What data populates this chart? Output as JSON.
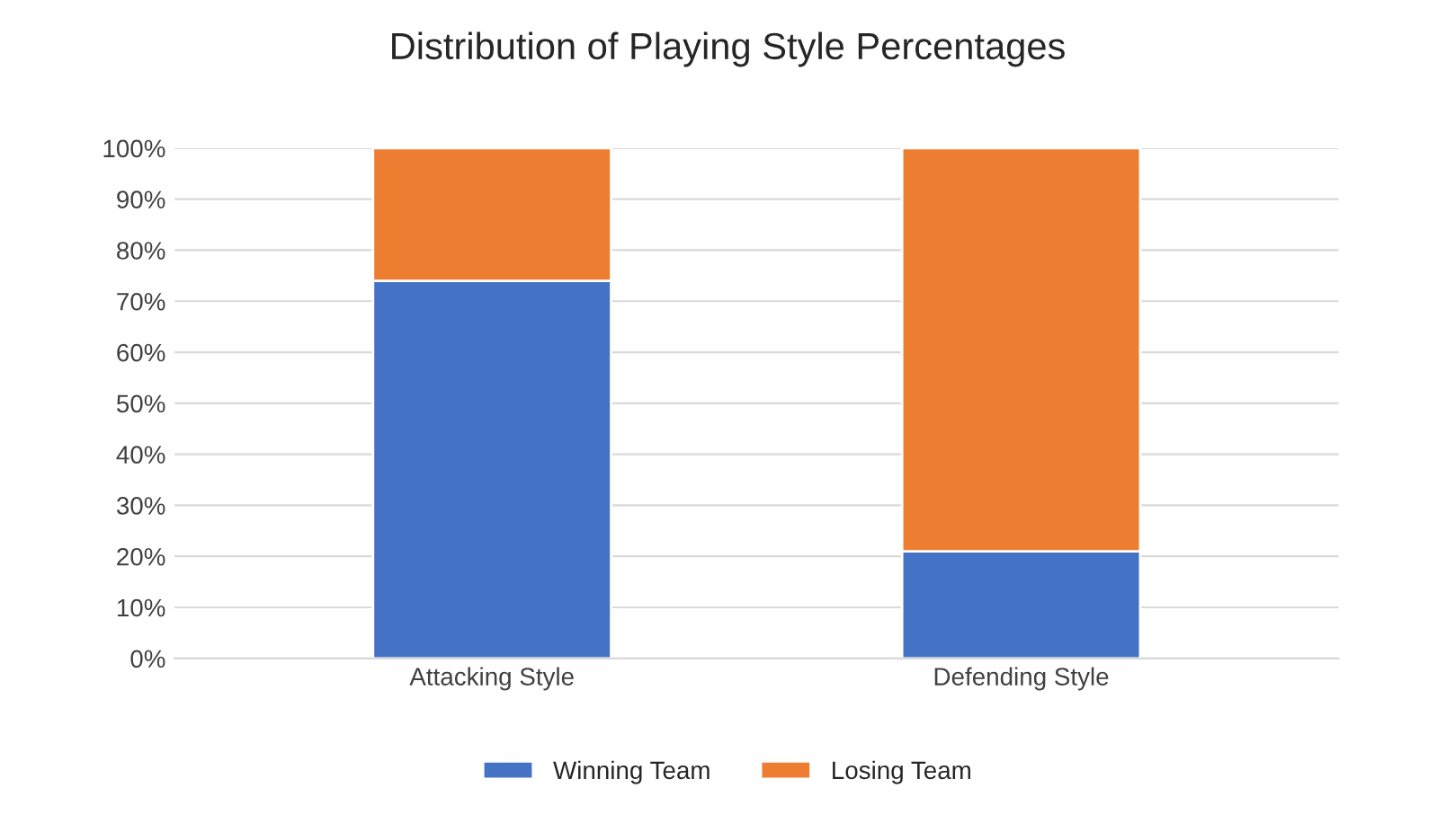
{
  "chart_data": {
    "type": "bar",
    "title": "Distribution of Playing Style Percentages",
    "categories": [
      "Attacking Style",
      "Defending Style"
    ],
    "stacked": true,
    "series": [
      {
        "name": "Winning Team",
        "color": "#4472c4",
        "values": [
          74,
          21
        ]
      },
      {
        "name": "Losing Team",
        "color": "#ed7d31",
        "values": [
          26,
          79
        ]
      }
    ],
    "ylim": [
      0,
      100
    ],
    "yticks": [
      {
        "value": 0,
        "label": "0%"
      },
      {
        "value": 10,
        "label": "10%"
      },
      {
        "value": 20,
        "label": "20%"
      },
      {
        "value": 30,
        "label": "30%"
      },
      {
        "value": 40,
        "label": "40%"
      },
      {
        "value": 50,
        "label": "50%"
      },
      {
        "value": 60,
        "label": "60%"
      },
      {
        "value": 70,
        "label": "70%"
      },
      {
        "value": 80,
        "label": "80%"
      },
      {
        "value": 90,
        "label": "90%"
      },
      {
        "value": 100,
        "label": "100%"
      }
    ],
    "grid": "y",
    "legend": "bottom"
  }
}
